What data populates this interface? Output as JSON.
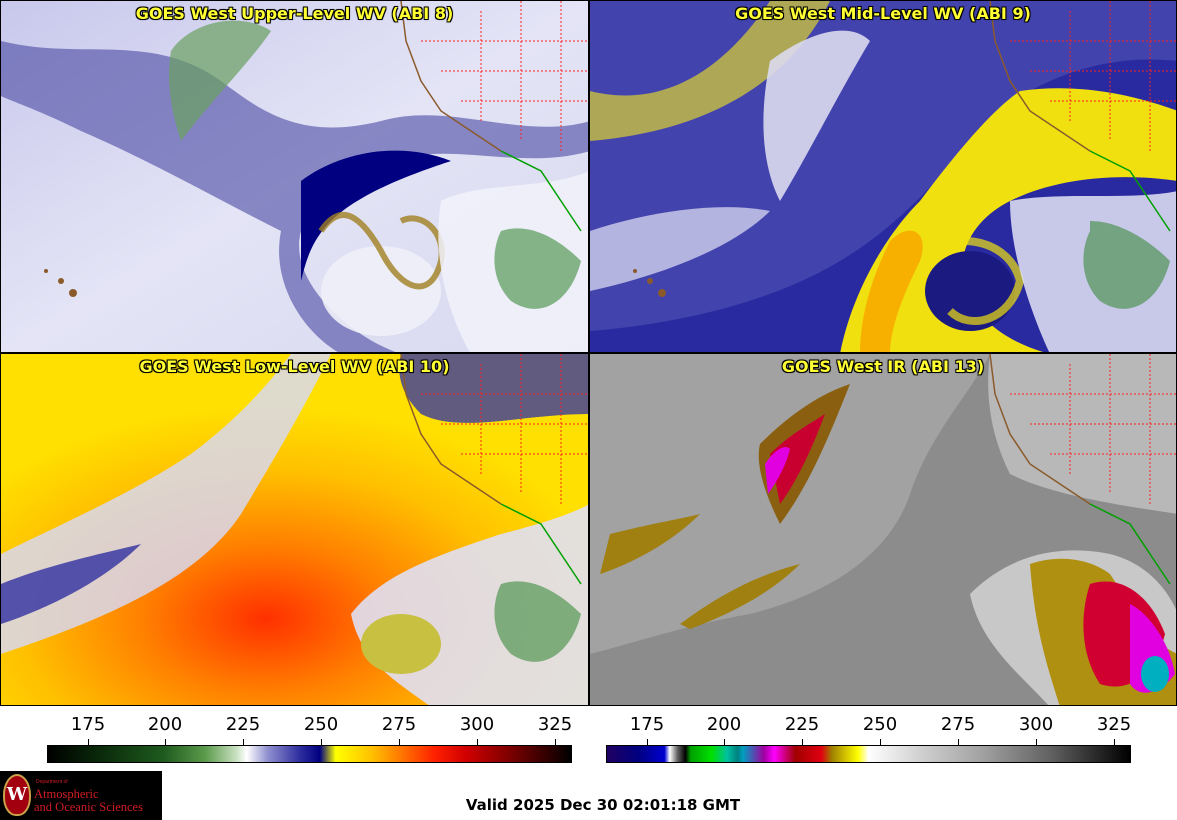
{
  "panels": [
    {
      "title": "GOES West Upper-Level WV (ABI 8)"
    },
    {
      "title": "GOES West Mid-Level WV (ABI 9)"
    },
    {
      "title": "GOES West Low-Level WV (ABI 10)"
    },
    {
      "title": "GOES West IR (ABI 13)"
    }
  ],
  "colorbars": [
    {
      "ticks": [
        "175",
        "200",
        "225",
        "250",
        "275",
        "300",
        "325"
      ]
    },
    {
      "ticks": [
        "175",
        "200",
        "225",
        "250",
        "275",
        "300",
        "325"
      ]
    }
  ],
  "logo": {
    "dept": "Department of",
    "line1": "Atmospheric",
    "line2": "and Oceanic Sciences",
    "crest": "W"
  },
  "valid_time": "Valid 2025 Dec 30 02:01:18 GMT",
  "colors": {
    "title_yellow": "#ffff33",
    "state_borders": "#ff2020",
    "coastline": "#8b5a2b",
    "mexico_border": "#00a000",
    "logo_red": "#d01c24"
  }
}
